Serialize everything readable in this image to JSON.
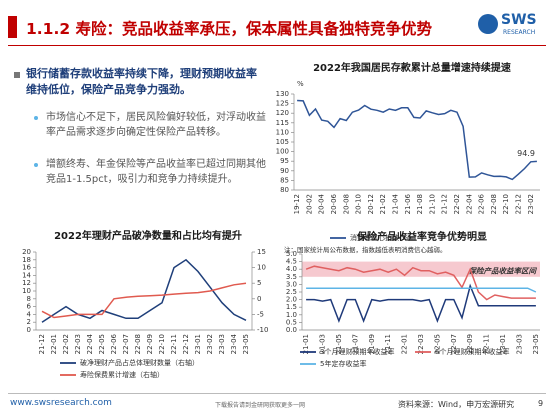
{
  "header": {
    "title": "1.1.2 寿险：竞品收益率承压，保本属性具备独特竞争优势",
    "logo": "SWS",
    "logo_sub": "RESEARCH"
  },
  "summary": {
    "heading": "银行储蓄存款收益率持续下降，理财预期收益率维持低位，保险产品竞争力强劲。",
    "bullets": [
      "市场信心不足下，居民风险偏好较低，对浮动收益率产品需求逐步向确定性保险产品转移。",
      "增额终寿、年金保险等产品收益率已超过同期其他竞品1-1.5pct，吸引力和竞争力持续提升。"
    ]
  },
  "chart_data": [
    {
      "type": "line",
      "title": "2022年我国居民存款累计总量增速持续提速",
      "y_unit": "%",
      "categories": [
        "19-12",
        null,
        "20-02",
        null,
        "20-04",
        null,
        "20-06",
        null,
        "20-08",
        null,
        "20-10",
        null,
        "20-12",
        null,
        "21-02",
        null,
        "21-04",
        null,
        "21-06",
        null,
        "21-08",
        null,
        "21-10",
        null,
        "21-12",
        null,
        "22-02",
        null,
        "22-04",
        null,
        "22-06",
        null,
        "22-08",
        null,
        "22-10",
        null,
        "22-12",
        null,
        "23-02",
        null
      ],
      "series": [
        {
          "name": "消费者信心指数(%)",
          "color": "#2f5597",
          "values": [
            126.6,
            126.4,
            118.9,
            122.2,
            116.4,
            115.8,
            112.6,
            117.2,
            116.2,
            120.5,
            121.6,
            124.0,
            122.1,
            121.5,
            120.5,
            122.2,
            121.5,
            122.8,
            122.8,
            117.8,
            117.5,
            121.2,
            120.2,
            119.3,
            119.8,
            121.5,
            120.5,
            113.2,
            86.7,
            86.8,
            88.9,
            87.9,
            87.1,
            87.2,
            86.8,
            85.5,
            88.3,
            91.2,
            94.7,
            94.9
          ]
        }
      ],
      "ylim": [
        80,
        130
      ],
      "yticks": [
        80,
        85,
        90,
        95,
        100,
        105,
        110,
        115,
        120,
        125,
        130
      ],
      "note": "注：国家统计局公布数据，指数越低表明消费信心越弱。"
    },
    {
      "type": "line",
      "title": "2022年理财产品破净数量和占比均有提升",
      "categories": [
        "21-12",
        "22-01",
        "22-02",
        "22-03",
        "22-04",
        "22-05",
        "22-06",
        "22-07",
        "22-08",
        "22-09",
        "22-10",
        "22-11",
        "22-12",
        "23-01",
        "23-02",
        "23-03",
        "23-04",
        "23-05"
      ],
      "series": [
        {
          "name": "破净理财产品占总体理财数量（右轴）",
          "color": "#1f3f7a",
          "values": [
            2,
            4,
            6,
            4,
            3,
            5,
            4,
            3,
            3,
            5,
            7,
            16,
            18,
            15,
            11,
            7,
            4,
            2.5
          ]
        },
        {
          "name": "寿险保费累计增速（右轴）",
          "color": "#e05a4f",
          "axis": "y2",
          "values": [
            -4,
            -6,
            -5.5,
            -5,
            -5,
            -5,
            0,
            0.5,
            0.8,
            1,
            1.2,
            1.5,
            1.8,
            2,
            2.5,
            3.5,
            4.5,
            5
          ]
        }
      ],
      "ylim": [
        0,
        20
      ],
      "yticks": [
        0,
        2,
        4,
        6,
        8,
        10,
        12,
        14,
        16,
        18,
        20
      ],
      "y2lim": [
        -10,
        15
      ],
      "y2ticks": [
        -10,
        -5,
        0,
        5,
        10,
        15
      ]
    },
    {
      "type": "line",
      "title": "保险产品收益率竞争优势明显",
      "annotation": "保险产品收益率区间",
      "band": [
        3.5,
        4.5
      ],
      "categories": [
        "21-01",
        null,
        "21-03",
        null,
        "21-05",
        null,
        "21-07",
        null,
        "21-09",
        null,
        "21-11",
        null,
        "22-01",
        null,
        "22-03",
        null,
        "22-05",
        null,
        "22-07",
        null,
        "22-09",
        null,
        "22-11",
        null,
        "23-01",
        null,
        "23-03",
        null,
        "23-05"
      ],
      "series": [
        {
          "name": "3个月理财预期年收益率",
          "color": "#1f3a7a",
          "values": [
            2.0,
            2.0,
            1.9,
            2.0,
            0.6,
            2.0,
            2.0,
            0.6,
            2.0,
            1.9,
            2.0,
            2.0,
            2.0,
            2.0,
            1.9,
            2.0,
            0.6,
            2.0,
            2.0,
            0.8,
            2.9,
            1.6,
            1.6,
            1.6,
            1.6,
            1.6,
            1.6,
            1.6,
            1.6
          ]
        },
        {
          "name": "6个月理财预期年收益率",
          "color": "#e06060",
          "values": [
            4.0,
            4.2,
            4.1,
            4.0,
            3.9,
            4.1,
            4.0,
            3.8,
            3.9,
            4.0,
            3.8,
            4.0,
            3.6,
            4.1,
            3.9,
            3.9,
            3.7,
            3.8,
            3.6,
            2.8,
            4.0,
            2.5,
            2.0,
            2.3,
            2.2,
            2.1,
            2.1,
            2.1,
            2.1
          ]
        },
        {
          "name": "5年定存收益率",
          "color": "#5db4e6",
          "values": [
            2.75,
            2.75,
            2.75,
            2.75,
            2.75,
            2.75,
            2.75,
            2.75,
            2.75,
            2.75,
            2.75,
            2.75,
            2.75,
            2.75,
            2.75,
            2.75,
            2.75,
            2.75,
            2.75,
            2.75,
            2.75,
            2.75,
            2.75,
            2.75,
            2.75,
            2.75,
            2.75,
            2.75,
            2.5
          ]
        }
      ],
      "ylim": [
        0,
        5
      ],
      "yticks": [
        {
          "value": 0,
          "label": "0.0"
        },
        0.5,
        {
          "value": 1,
          "label": "1.0"
        },
        1.5,
        {
          "value": 2,
          "label": "2.0"
        },
        2.5,
        {
          "value": 3,
          "label": "3.0"
        },
        3.5,
        {
          "value": 4,
          "label": "4.0"
        },
        4.5,
        {
          "value": 5,
          "label": "5.0"
        }
      ]
    }
  ],
  "footer": {
    "website": "www.swsresearch.com",
    "middle": "下载报告请到金研网获取更多一网",
    "source": "资料来源：Wind，申万宏源研究",
    "page": "9"
  }
}
